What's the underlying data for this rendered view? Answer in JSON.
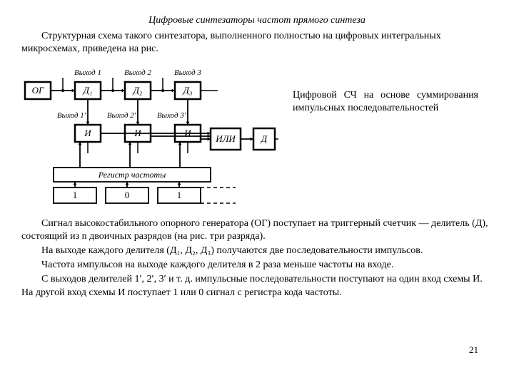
{
  "title": "Цифровые синтезаторы частот прямого синтеза",
  "intro1": "Структурная схема такого синтезатора, выполненного полностью на цифровых интегральных микросхемах, приведена на рис.",
  "caption": "Цифровой СЧ на основе суммирования импульсных последовательностей",
  "p1": "Сигнал высокостабильного опорного генератора (ОГ) поступает на триггерный счетчик — делитель (Д), состоящий из n двоичных разрядов (на рис. три разряда).",
  "p2": "На выходе каждого делителя (Д₁, Д₂, Д₃) получаются две последовательности импульсов.",
  "p3": "Частота импульсов на выходе каждого делителя в 2 раза меньше частоты на входе.",
  "p4": "С выходов делителей 1′, 2′, 3′ и т. д. импульсные последовательности поступают на один вход схемы И. На другой вход схемы И поступает 1 или 0 сигнал с регистра кода частоты.",
  "pagenum": "21",
  "diagram": {
    "labels": {
      "og": "ОГ",
      "d1": "Д₁",
      "d2": "Д₂",
      "d3": "Д₃",
      "i": "И",
      "ili": "ИЛИ",
      "d": "Д",
      "reg": "Регистр   частоты",
      "out1": "Выход 1",
      "out2": "Выход 2",
      "out3": "Выход 3",
      "out1p": "Выход 1′",
      "out2p": "Выход 2′",
      "out3p": "Выход 3′",
      "b1": "1",
      "b2": "0",
      "b3": "1"
    },
    "stroke": "#000",
    "bg": "#fff",
    "font": "italic 12px 'Times New Roman'",
    "labelFont": "italic 11px 'Times New Roman'"
  }
}
